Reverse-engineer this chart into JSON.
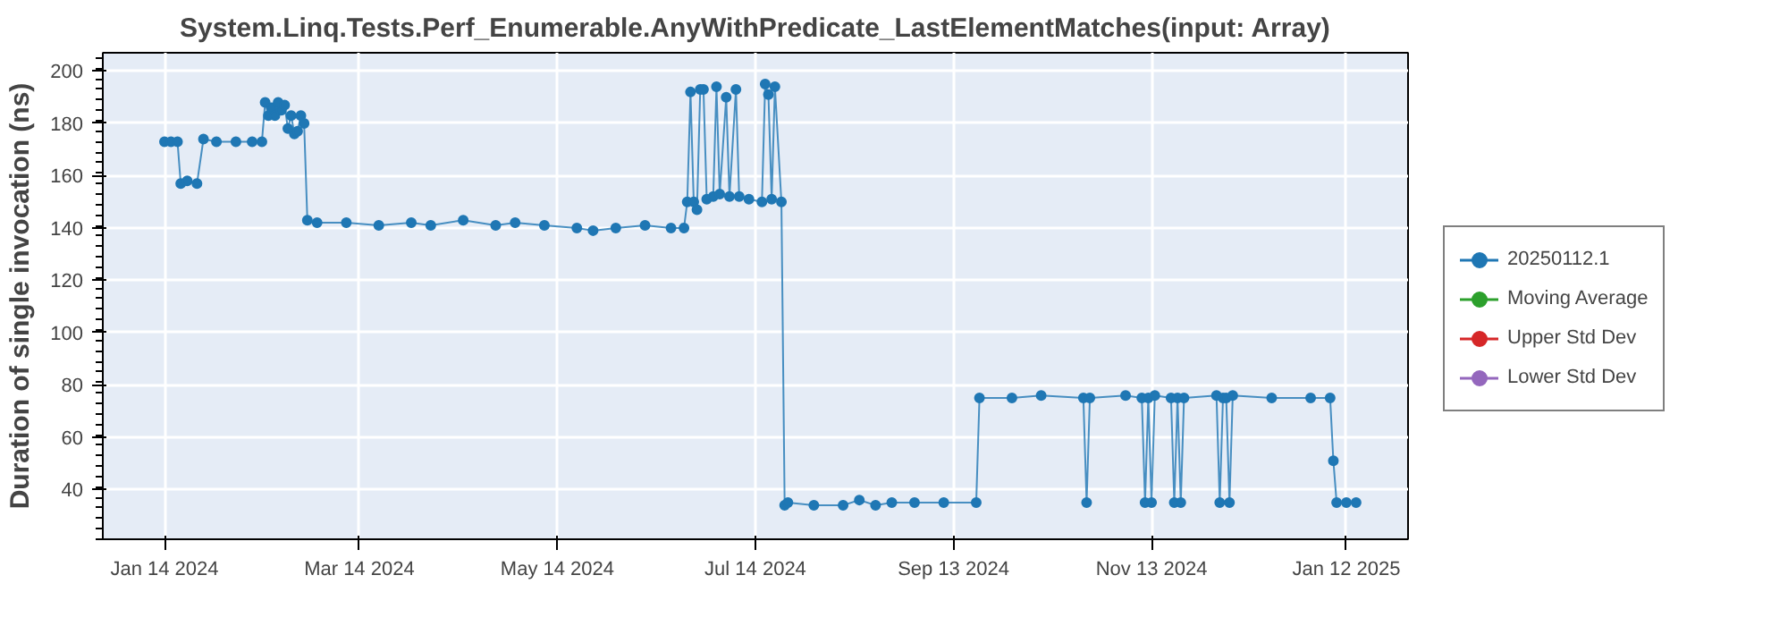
{
  "chart_data": {
    "type": "line",
    "title": "System.Linq.Tests.Perf_Enumerable.AnyWithPredicate_LastElementMatches(input: Array)",
    "ylabel": "Duration of single invocation (ns)",
    "xlim": [
      "2023-12-26",
      "2025-01-31"
    ],
    "ylim": [
      21,
      207
    ],
    "xticks": [
      {
        "value": "2024-01-14",
        "label": "Jan 14 2024"
      },
      {
        "value": "2024-03-14",
        "label": "Mar 14 2024"
      },
      {
        "value": "2024-05-14",
        "label": "May 14 2024"
      },
      {
        "value": "2024-07-14",
        "label": "Jul 14 2024"
      },
      {
        "value": "2024-09-13",
        "label": "Sep 13 2024"
      },
      {
        "value": "2024-11-13",
        "label": "Nov 13 2024"
      },
      {
        "value": "2025-01-12",
        "label": "Jan 12 2025"
      }
    ],
    "yticks": [
      40,
      60,
      80,
      100,
      120,
      140,
      160,
      180,
      200
    ],
    "grid": true,
    "legend": "right",
    "marker": "circle",
    "line_style": "solid",
    "series": [
      {
        "name": "20250112.1",
        "color": "#1f77b4",
        "x": [
          "2024-01-14",
          "2024-01-16",
          "2024-01-18",
          "2024-01-19",
          "2024-01-21",
          "2024-01-24",
          "2024-01-26",
          "2024-01-30",
          "2024-02-05",
          "2024-02-10",
          "2024-02-13",
          "2024-02-14",
          "2024-02-15",
          "2024-02-16",
          "2024-02-17",
          "2024-02-18",
          "2024-02-19",
          "2024-02-20",
          "2024-02-21",
          "2024-02-22",
          "2024-02-23",
          "2024-02-24",
          "2024-02-25",
          "2024-02-26",
          "2024-02-27",
          "2024-03-01",
          "2024-03-10",
          "2024-03-20",
          "2024-03-30",
          "2024-04-05",
          "2024-04-15",
          "2024-04-25",
          "2024-05-01",
          "2024-05-10",
          "2024-05-20",
          "2024-05-25",
          "2024-06-01",
          "2024-06-10",
          "2024-06-18",
          "2024-06-22",
          "2024-06-23",
          "2024-06-24",
          "2024-06-25",
          "2024-06-26",
          "2024-06-27",
          "2024-06-28",
          "2024-06-29",
          "2024-07-01",
          "2024-07-02",
          "2024-07-03",
          "2024-07-05",
          "2024-07-06",
          "2024-07-08",
          "2024-07-09",
          "2024-07-12",
          "2024-07-16",
          "2024-07-17",
          "2024-07-18",
          "2024-07-19",
          "2024-07-20",
          "2024-07-22",
          "2024-07-23",
          "2024-07-24",
          "2024-08-01",
          "2024-08-10",
          "2024-08-15",
          "2024-08-20",
          "2024-08-25",
          "2024-09-01",
          "2024-09-10",
          "2024-09-20",
          "2024-09-21",
          "2024-10-01",
          "2024-10-10",
          "2024-10-23",
          "2024-10-24",
          "2024-10-25",
          "2024-11-05",
          "2024-11-10",
          "2024-11-11",
          "2024-11-12",
          "2024-11-13",
          "2024-11-14",
          "2024-11-19",
          "2024-11-20",
          "2024-11-21",
          "2024-11-22",
          "2024-11-23",
          "2024-12-03",
          "2024-12-04",
          "2024-12-05",
          "2024-12-06",
          "2024-12-07",
          "2024-12-08",
          "2024-12-20",
          "2025-01-01",
          "2025-01-07",
          "2025-01-08",
          "2025-01-09",
          "2025-01-12",
          "2025-01-15"
        ],
        "values": [
          173,
          173,
          173,
          157,
          158,
          157,
          174,
          173,
          173,
          173,
          173,
          188,
          183,
          186,
          183,
          188,
          185,
          187,
          178,
          183,
          176,
          177,
          183,
          180,
          143,
          142,
          142,
          141,
          142,
          141,
          143,
          141,
          142,
          141,
          140,
          139,
          140,
          141,
          140,
          140,
          150,
          192,
          150,
          147,
          193,
          193,
          151,
          152,
          194,
          153,
          190,
          152,
          193,
          152,
          151,
          150,
          195,
          191,
          151,
          194,
          150,
          34,
          35,
          34,
          34,
          36,
          34,
          35,
          35,
          35,
          35,
          75,
          75,
          76,
          75,
          35,
          75,
          76,
          75,
          35,
          75,
          35,
          76,
          75,
          35,
          75,
          35,
          75,
          76,
          35,
          75,
          75,
          35,
          76,
          75,
          75,
          75,
          51,
          35,
          35,
          35
        ]
      },
      {
        "name": "Moving Average",
        "color": "#2ca02c"
      },
      {
        "name": "Upper Std Dev",
        "color": "#d62728"
      },
      {
        "name": "Lower Std Dev",
        "color": "#9467bd"
      }
    ]
  }
}
